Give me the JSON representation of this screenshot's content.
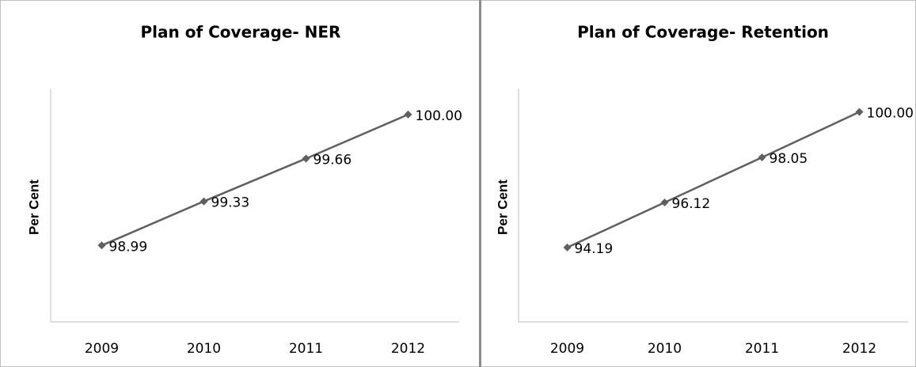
{
  "chart_data": [
    {
      "type": "line",
      "title": "Plan of Coverage- NER",
      "y_label": "Per Cent",
      "categories": [
        "2009",
        "2010",
        "2011",
        "2012"
      ],
      "values": [
        98.99,
        99.33,
        99.66,
        100
      ],
      "value_labels": [
        "98.99",
        "99.33",
        "99.66",
        "100.00"
      ],
      "color": "#5f5f5f",
      "ylim": [
        98.4,
        100.2
      ]
    },
    {
      "type": "line",
      "title": "Plan of Coverage- Retention",
      "y_label": "Per Cent",
      "categories": [
        "2009",
        "2010",
        "2011",
        "2012"
      ],
      "values": [
        94.19,
        96.12,
        98.05,
        100
      ],
      "value_labels": [
        "94.19",
        "96.12",
        "98.05",
        "100.00"
      ],
      "color": "#5f5f5f",
      "ylim": [
        91,
        101
      ]
    }
  ]
}
